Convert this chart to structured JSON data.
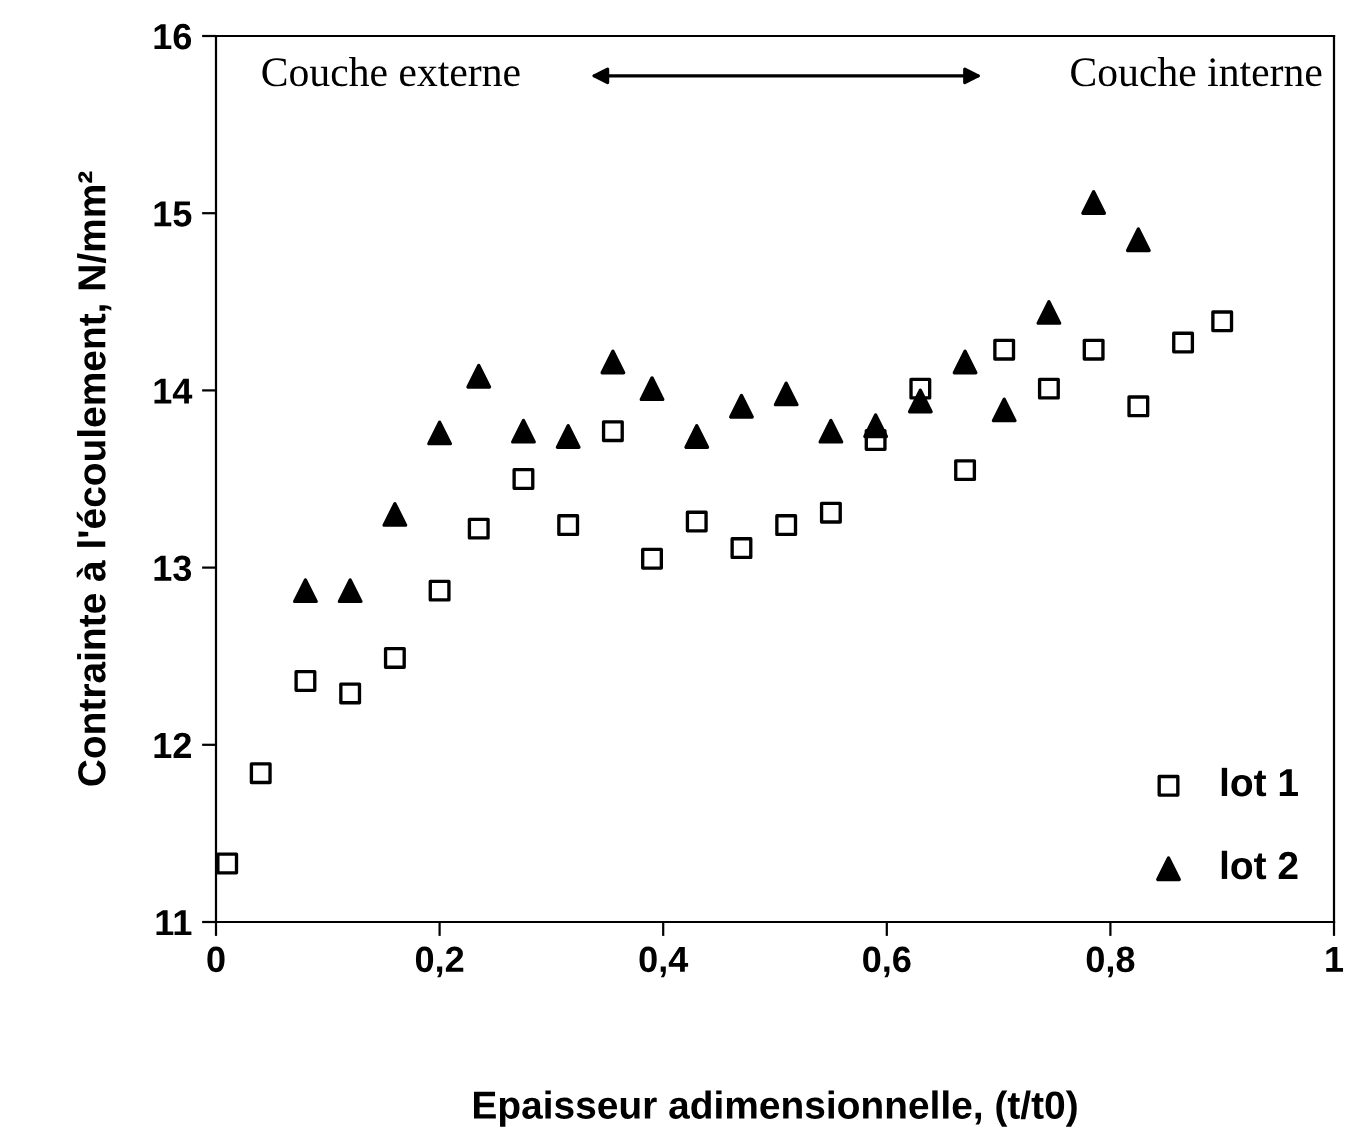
{
  "chart_data": {
    "type": "scatter",
    "xlabel": "Epaisseur adimensionnelle, (t/t0)",
    "ylabel": "Contrainte à l'écoulement, N/mm²",
    "annotations": [
      "Couche externe",
      "Couche interne"
    ],
    "xlim": [
      0,
      1
    ],
    "xticks": [
      0,
      {
        "value": 0.2,
        "label": "0,2"
      },
      {
        "value": 0.4,
        "label": "0,4"
      },
      {
        "value": 0.6,
        "label": "0,6"
      },
      {
        "value": 0.8,
        "label": "0,8"
      },
      1
    ],
    "ylim": [
      11,
      16
    ],
    "yticks": [
      11,
      12,
      13,
      14,
      15,
      16
    ],
    "grid": false,
    "legend": "bottom right",
    "series": [
      {
        "name": "lot 1",
        "color": "#000000",
        "marker": "square",
        "x": [
          0.01,
          0.04,
          0.08,
          0.12,
          0.16,
          0.2,
          0.235,
          0.275,
          0.315,
          0.355,
          0.39,
          0.43,
          0.47,
          0.51,
          0.55,
          0.59,
          0.63,
          0.67,
          0.705,
          0.745,
          0.785,
          0.825,
          0.865,
          0.9
        ],
        "values": [
          11.33,
          11.84,
          12.36,
          12.29,
          12.49,
          12.87,
          13.22,
          13.5,
          13.24,
          13.77,
          13.05,
          13.26,
          13.11,
          13.24,
          13.31,
          13.72,
          14.01,
          13.55,
          14.23,
          14.01,
          14.23,
          13.91,
          14.27,
          14.39
        ]
      },
      {
        "name": "lot 2",
        "color": "#000000",
        "marker": "triangle",
        "x": [
          0.08,
          0.12,
          0.16,
          0.2,
          0.235,
          0.275,
          0.315,
          0.355,
          0.39,
          0.43,
          0.47,
          0.51,
          0.55,
          0.59,
          0.63,
          0.67,
          0.705,
          0.745,
          0.785,
          0.825
        ],
        "values": [
          12.87,
          12.87,
          13.3,
          13.76,
          14.08,
          13.77,
          13.74,
          14.16,
          14.01,
          13.74,
          13.91,
          13.98,
          13.77,
          13.8,
          13.94,
          14.16,
          13.89,
          14.44,
          15.06,
          14.85
        ]
      }
    ]
  }
}
